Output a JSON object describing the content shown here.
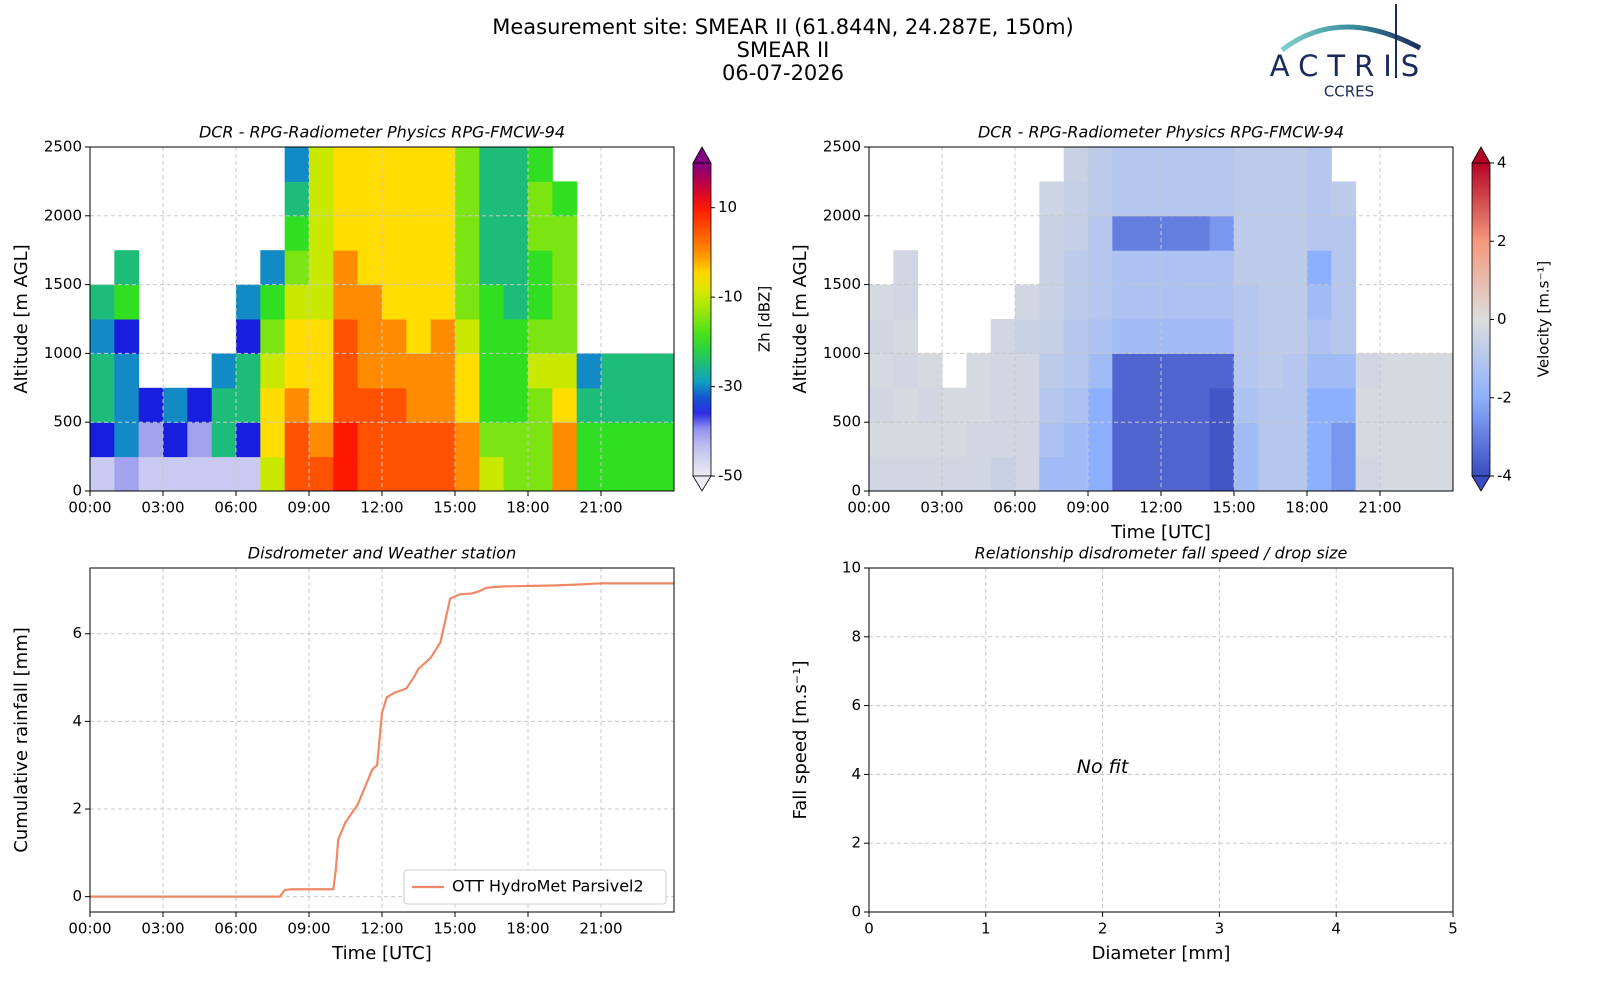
{
  "header": {
    "title_lines": [
      "Measurement site: SMEAR II (61.844N, 24.287E, 150m)",
      "SMEAR II",
      "06-07-2026"
    ],
    "logo": {
      "name": "ACTRIS",
      "sub": "CCRES"
    }
  },
  "chart_data": [
    {
      "type": "heatmap",
      "title": "DCR - RPG-Radiometer Physics RPG-FMCW-94",
      "y_label": "Altitude [m AGL]",
      "xlim": [
        0,
        24
      ],
      "xticks": [
        {
          "value": 0,
          "label": "00:00"
        },
        {
          "value": 3,
          "label": "03:00"
        },
        {
          "value": 6,
          "label": "06:00"
        },
        {
          "value": 9,
          "label": "09:00"
        },
        {
          "value": 12,
          "label": "12:00"
        },
        {
          "value": 15,
          "label": "15:00"
        },
        {
          "value": 18,
          "label": "18:00"
        },
        {
          "value": 21,
          "label": "21:00"
        }
      ],
      "ylim": [
        0,
        2500
      ],
      "yticks": [
        0,
        500,
        1000,
        1500,
        2000,
        2500
      ],
      "grid": true,
      "x_bins": [
        0,
        1,
        2,
        3,
        4,
        5,
        6,
        7,
        8,
        9,
        10,
        11,
        12,
        13,
        14,
        15,
        16,
        17,
        18,
        19,
        20,
        21,
        22,
        23,
        24
      ],
      "y_bins": [
        0,
        250,
        500,
        750,
        1000,
        1250,
        1500,
        1750,
        2000,
        2250,
        2500
      ],
      "values": [
        [
          -45,
          -35,
          -25,
          -25,
          -30,
          -25,
          null,
          null,
          null,
          null
        ],
        [
          -40,
          -30,
          -30,
          -30,
          -35,
          -20,
          -25,
          null,
          null,
          null
        ],
        [
          -45,
          -40,
          -35,
          null,
          null,
          null,
          null,
          null,
          null,
          null
        ],
        [
          -45,
          -35,
          -30,
          null,
          null,
          null,
          null,
          null,
          null,
          null
        ],
        [
          -45,
          -40,
          -35,
          null,
          null,
          null,
          null,
          null,
          null,
          null
        ],
        [
          -45,
          -25,
          -25,
          -30,
          null,
          null,
          null,
          null,
          null,
          null
        ],
        [
          -45,
          -35,
          -25,
          -25,
          -35,
          -30,
          null,
          null,
          null,
          null
        ],
        [
          -10,
          -5,
          -5,
          -10,
          -15,
          -20,
          -30,
          null,
          null,
          null
        ],
        [
          5,
          5,
          0,
          -5,
          -5,
          -10,
          -15,
          -20,
          -25,
          -30
        ],
        [
          5,
          0,
          -5,
          -5,
          -5,
          -10,
          -10,
          -10,
          -10,
          -10
        ],
        [
          10,
          10,
          5,
          5,
          5,
          0,
          0,
          -5,
          -5,
          -5
        ],
        [
          5,
          5,
          5,
          0,
          0,
          0,
          -5,
          -5,
          -5,
          -5
        ],
        [
          5,
          5,
          5,
          0,
          0,
          -5,
          -5,
          -5,
          -5,
          -5
        ],
        [
          5,
          5,
          0,
          0,
          -5,
          -5,
          -5,
          -5,
          -5,
          -5
        ],
        [
          5,
          5,
          0,
          0,
          0,
          -5,
          -5,
          -5,
          -5,
          -5
        ],
        [
          0,
          0,
          -5,
          -5,
          -10,
          -15,
          -15,
          -15,
          -15,
          -15
        ],
        [
          -10,
          -15,
          -20,
          -20,
          -20,
          -20,
          -25,
          -25,
          -25,
          -25
        ],
        [
          -15,
          -15,
          -20,
          -20,
          -20,
          -25,
          -25,
          -25,
          -25,
          -25
        ],
        [
          -15,
          -15,
          -15,
          -10,
          -15,
          -20,
          -20,
          -15,
          -15,
          -20
        ],
        [
          0,
          0,
          -5,
          -10,
          -15,
          -15,
          -15,
          -15,
          -20,
          null
        ],
        [
          -20,
          -20,
          -25,
          -30,
          null,
          null,
          null,
          null,
          null,
          null
        ],
        [
          -20,
          -20,
          -25,
          -25,
          null,
          null,
          null,
          null,
          null,
          null
        ],
        [
          -20,
          -20,
          -25,
          -25,
          null,
          null,
          null,
          null,
          null,
          null
        ],
        [
          -20,
          -20,
          -25,
          -25,
          null,
          null,
          null,
          null,
          null,
          null
        ]
      ],
      "colorbar": {
        "label": "Zh [dBZ]",
        "clim": [
          -50,
          20
        ],
        "ticks": [
          -50,
          -30,
          -10,
          10
        ],
        "cmap": "rainbow"
      }
    },
    {
      "type": "heatmap",
      "title": "DCR - RPG-Radiometer Physics RPG-FMCW-94",
      "y_label": "Altitude [m AGL]",
      "x_label": "Time [UTC]",
      "xlim": [
        0,
        24
      ],
      "xticks": [
        {
          "value": 0,
          "label": "00:00"
        },
        {
          "value": 3,
          "label": "03:00"
        },
        {
          "value": 6,
          "label": "06:00"
        },
        {
          "value": 9,
          "label": "09:00"
        },
        {
          "value": 12,
          "label": "12:00"
        },
        {
          "value": 15,
          "label": "15:00"
        },
        {
          "value": 18,
          "label": "18:00"
        },
        {
          "value": 21,
          "label": "21:00"
        }
      ],
      "ylim": [
        0,
        2500
      ],
      "yticks": [
        0,
        500,
        1000,
        1500,
        2000,
        2500
      ],
      "grid": true,
      "x_bins": [
        0,
        1,
        2,
        3,
        4,
        5,
        6,
        7,
        8,
        9,
        10,
        11,
        12,
        13,
        14,
        15,
        16,
        17,
        18,
        19,
        20,
        21,
        22,
        23,
        24
      ],
      "y_bins": [
        0,
        250,
        500,
        750,
        1000,
        1250,
        1500,
        1750,
        2000,
        2250,
        2500
      ],
      "values": [
        [
          -0.3,
          -0.2,
          -0.3,
          -0.2,
          -0.3,
          -0.2,
          null,
          null,
          null,
          null
        ],
        [
          -0.3,
          -0.2,
          -0.2,
          -0.3,
          -0.2,
          -0.3,
          -0.3,
          null,
          null,
          null
        ],
        [
          -0.3,
          -0.2,
          -0.3,
          -0.2,
          null,
          null,
          null,
          null,
          null,
          null
        ],
        [
          -0.3,
          -0.2,
          -0.2,
          null,
          null,
          null,
          null,
          null,
          null,
          null
        ],
        [
          -0.3,
          -0.3,
          -0.2,
          -0.2,
          null,
          null,
          null,
          null,
          null,
          null
        ],
        [
          -0.5,
          -0.3,
          -0.3,
          -0.3,
          -0.3,
          null,
          null,
          null,
          null,
          null
        ],
        [
          -0.3,
          -0.3,
          -0.3,
          -0.3,
          -0.5,
          -0.3,
          null,
          null,
          null,
          null
        ],
        [
          -1.5,
          -1.2,
          -1,
          -0.8,
          -0.6,
          -0.5,
          -0.5,
          -0.5,
          -0.4,
          null
        ],
        [
          -1.5,
          -1.5,
          -1.2,
          -1,
          -1,
          -0.8,
          -0.8,
          -0.6,
          -0.6,
          -0.5
        ],
        [
          -2,
          -2,
          -2,
          -1.5,
          -1.2,
          -1,
          -1,
          -1,
          -0.8,
          -0.8
        ],
        [
          -3.5,
          -3.5,
          -3.5,
          -3.5,
          -1.5,
          -1.2,
          -1.2,
          -3,
          -1,
          -1
        ],
        [
          -3.5,
          -3.5,
          -3.5,
          -3.5,
          -1.5,
          -1.2,
          -1.2,
          -3,
          -1,
          -1
        ],
        [
          -3.5,
          -3.5,
          -3.5,
          -3.5,
          -1.5,
          -1.2,
          -1.2,
          -3,
          -1,
          -1
        ],
        [
          -3.5,
          -3.5,
          -3.5,
          -3.5,
          -1.5,
          -1.2,
          -1.2,
          -3,
          -1,
          -1
        ],
        [
          -3.8,
          -3.8,
          -3.8,
          -3.5,
          -1.5,
          -1.2,
          -1.2,
          -2.5,
          -1,
          -1
        ],
        [
          -1.5,
          -1.5,
          -1.2,
          -1,
          -1,
          -1,
          -0.8,
          -0.8,
          -0.8,
          -0.8
        ],
        [
          -1,
          -1,
          -1,
          -0.8,
          -0.8,
          -0.8,
          -0.8,
          -0.8,
          -0.8,
          -0.8
        ],
        [
          -1,
          -1,
          -1,
          -1,
          -0.8,
          -0.8,
          -0.8,
          -0.8,
          -0.8,
          -0.8
        ],
        [
          -2,
          -2,
          -2,
          -1.5,
          -1.2,
          -1.5,
          -2,
          -1,
          -1,
          -1
        ],
        [
          -2.5,
          -2.5,
          -2,
          -1.5,
          -1,
          -1,
          -1,
          -1,
          -0.8,
          null
        ],
        [
          -0.3,
          -0.2,
          -0.2,
          -0.3,
          null,
          null,
          null,
          null,
          null,
          null
        ],
        [
          -0.2,
          -0.2,
          -0.2,
          -0.2,
          null,
          null,
          null,
          null,
          null,
          null
        ],
        [
          -0.2,
          -0.2,
          -0.2,
          -0.2,
          null,
          null,
          null,
          null,
          null,
          null
        ],
        [
          -0.2,
          -0.2,
          -0.2,
          -0.2,
          null,
          null,
          null,
          null,
          null,
          null
        ]
      ],
      "colorbar": {
        "label": "Velocity [m.s⁻¹]",
        "clim": [
          -4,
          4
        ],
        "ticks": [
          -4,
          -2,
          0,
          2,
          4
        ],
        "cmap": "coolwarm"
      }
    },
    {
      "type": "line",
      "title": "Disdrometer and Weather station",
      "y_label": "Cumulative rainfall [mm]",
      "x_label": "Time [UTC]",
      "xlim": [
        0,
        24
      ],
      "xticks": [
        {
          "value": 0,
          "label": "00:00"
        },
        {
          "value": 3,
          "label": "03:00"
        },
        {
          "value": 6,
          "label": "06:00"
        },
        {
          "value": 9,
          "label": "09:00"
        },
        {
          "value": 12,
          "label": "12:00"
        },
        {
          "value": 15,
          "label": "15:00"
        },
        {
          "value": 18,
          "label": "18:00"
        },
        {
          "value": 21,
          "label": "21:00"
        }
      ],
      "ylim": [
        -0.35,
        7.5
      ],
      "yticks": [
        0,
        2,
        4,
        6
      ],
      "grid": true,
      "legend": "lower right",
      "x": [
        0,
        7.8,
        8.0,
        8.3,
        10.0,
        10.1,
        10.2,
        10.5,
        11.0,
        11.3,
        11.6,
        11.8,
        12.0,
        12.2,
        12.5,
        13.0,
        13.3,
        13.5,
        14.0,
        14.4,
        14.6,
        14.8,
        15.2,
        15.7,
        16.0,
        16.3,
        17.0,
        19.0,
        20.0,
        21.0,
        24.0
      ],
      "series": [
        {
          "name": "OTT HydroMet Parsivel2",
          "color": "#ee8866",
          "values": [
            0,
            0,
            0.15,
            0.17,
            0.17,
            0.6,
            1.3,
            1.7,
            2.1,
            2.5,
            2.9,
            3.0,
            4.2,
            4.55,
            4.65,
            4.75,
            5.0,
            5.2,
            5.45,
            5.8,
            6.3,
            6.8,
            6.9,
            6.92,
            6.97,
            7.05,
            7.08,
            7.1,
            7.12,
            7.15,
            7.15
          ]
        }
      ]
    },
    {
      "type": "scatter",
      "title": "Relationship disdrometer fall speed / drop size",
      "y_label": "Fall speed [m.s⁻¹]",
      "x_label": "Diameter [mm]",
      "xlim": [
        0,
        5
      ],
      "xticks": [
        0,
        1,
        2,
        3,
        4,
        5
      ],
      "ylim": [
        0,
        10
      ],
      "yticks": [
        0,
        2,
        4,
        6,
        8,
        10
      ],
      "grid": true,
      "annotation": "No fit"
    }
  ]
}
